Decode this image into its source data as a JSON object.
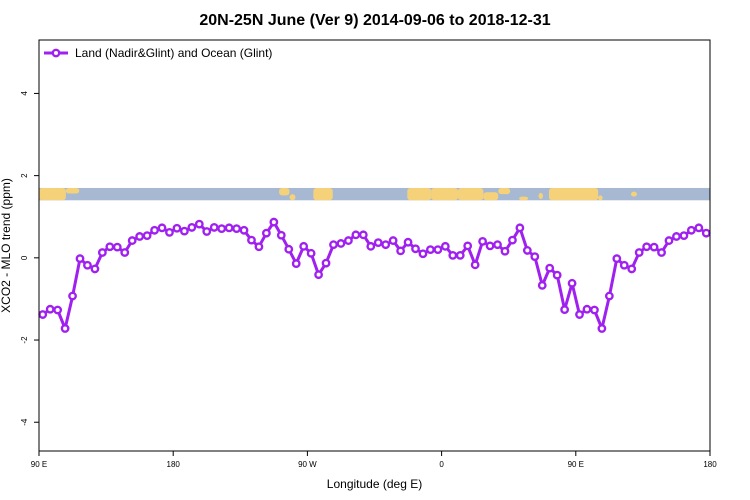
{
  "chart_data": {
    "type": "line",
    "title": "20N-25N June (Ver 9)   2014-09-06 to 2018-12-31",
    "xlabel": "Longitude (deg E)",
    "ylabel": "XCO2 - MLO trend (ppm)",
    "x_tick_labels": [
      "90 E",
      "180",
      "90 W",
      "0",
      "90 E",
      "180"
    ],
    "x_ticks": [
      90,
      180,
      270,
      360,
      450,
      540
    ],
    "xlim": [
      90,
      540
    ],
    "y_ticks": [
      -4,
      -2,
      0,
      2,
      4
    ],
    "ylim": [
      -4.7,
      5.3
    ],
    "grid": false,
    "legend_position": "top-left",
    "series": [
      {
        "name": "Land (Nadir&Glint) and Ocean (Glint)",
        "color": "#a020f0",
        "x": [
          92.5,
          97.5,
          102.5,
          107.5,
          112.5,
          117.5,
          122.5,
          127.5,
          132.5,
          137.5,
          142.5,
          147.5,
          152.5,
          157.5,
          162.5,
          167.5,
          172.5,
          177.5,
          182.5,
          187.5,
          192.5,
          197.5,
          202.5,
          207.5,
          212.5,
          217.5,
          222.5,
          227.5,
          232.5,
          237.5,
          242.5,
          247.5,
          252.5,
          257.5,
          262.5,
          267.5,
          272.5,
          277.5,
          282.5,
          287.5,
          292.5,
          297.5,
          302.5,
          307.5,
          312.5,
          317.5,
          322.5,
          327.5,
          332.5,
          337.5,
          342.5,
          347.5,
          352.5,
          357.5,
          362.5,
          367.5,
          372.5,
          377.5,
          382.5,
          387.5,
          392.5,
          397.5,
          402.5,
          407.5,
          412.5,
          417.5,
          422.5,
          427.5,
          432.5,
          437.5,
          442.5,
          447.5,
          452.5,
          457.5,
          462.5,
          467.5,
          472.5,
          477.5,
          482.5,
          487.5,
          492.5,
          497.5,
          502.5,
          507.5,
          512.5,
          517.5,
          522.5,
          527.5,
          532.5,
          537.5
        ],
        "values": [
          -1.38,
          -1.25,
          -1.27,
          -1.72,
          -0.93,
          -0.02,
          -0.18,
          -0.27,
          0.13,
          0.27,
          0.26,
          0.13,
          0.42,
          0.52,
          0.54,
          0.67,
          0.73,
          0.62,
          0.72,
          0.65,
          0.74,
          0.82,
          0.64,
          0.74,
          0.71,
          0.73,
          0.71,
          0.67,
          0.43,
          0.27,
          0.6,
          0.87,
          0.55,
          0.21,
          -0.14,
          0.28,
          0.11,
          -0.41,
          -0.13,
          0.32,
          0.35,
          0.42,
          0.56,
          0.56,
          0.28,
          0.37,
          0.32,
          0.42,
          0.17,
          0.38,
          0.22,
          0.1,
          0.2,
          0.2,
          0.28,
          0.06,
          0.06,
          0.29,
          -0.17,
          0.4,
          0.29,
          0.32,
          0.16,
          0.43,
          0.73,
          0.18,
          0.03,
          -0.67,
          -0.25,
          -0.42,
          -1.26,
          -0.62,
          -1.38,
          -1.25,
          -1.27,
          -1.72,
          -0.93,
          -0.02,
          -0.18,
          -0.27,
          0.13,
          0.27,
          0.26,
          0.13,
          0.42,
          0.52,
          0.54,
          0.67,
          0.73,
          0.6
        ]
      }
    ],
    "inset_map": {
      "y_range": [
        1.4,
        1.7
      ],
      "ocean_color": "#a6b8d2",
      "land_color": "#f5d27a"
    }
  }
}
